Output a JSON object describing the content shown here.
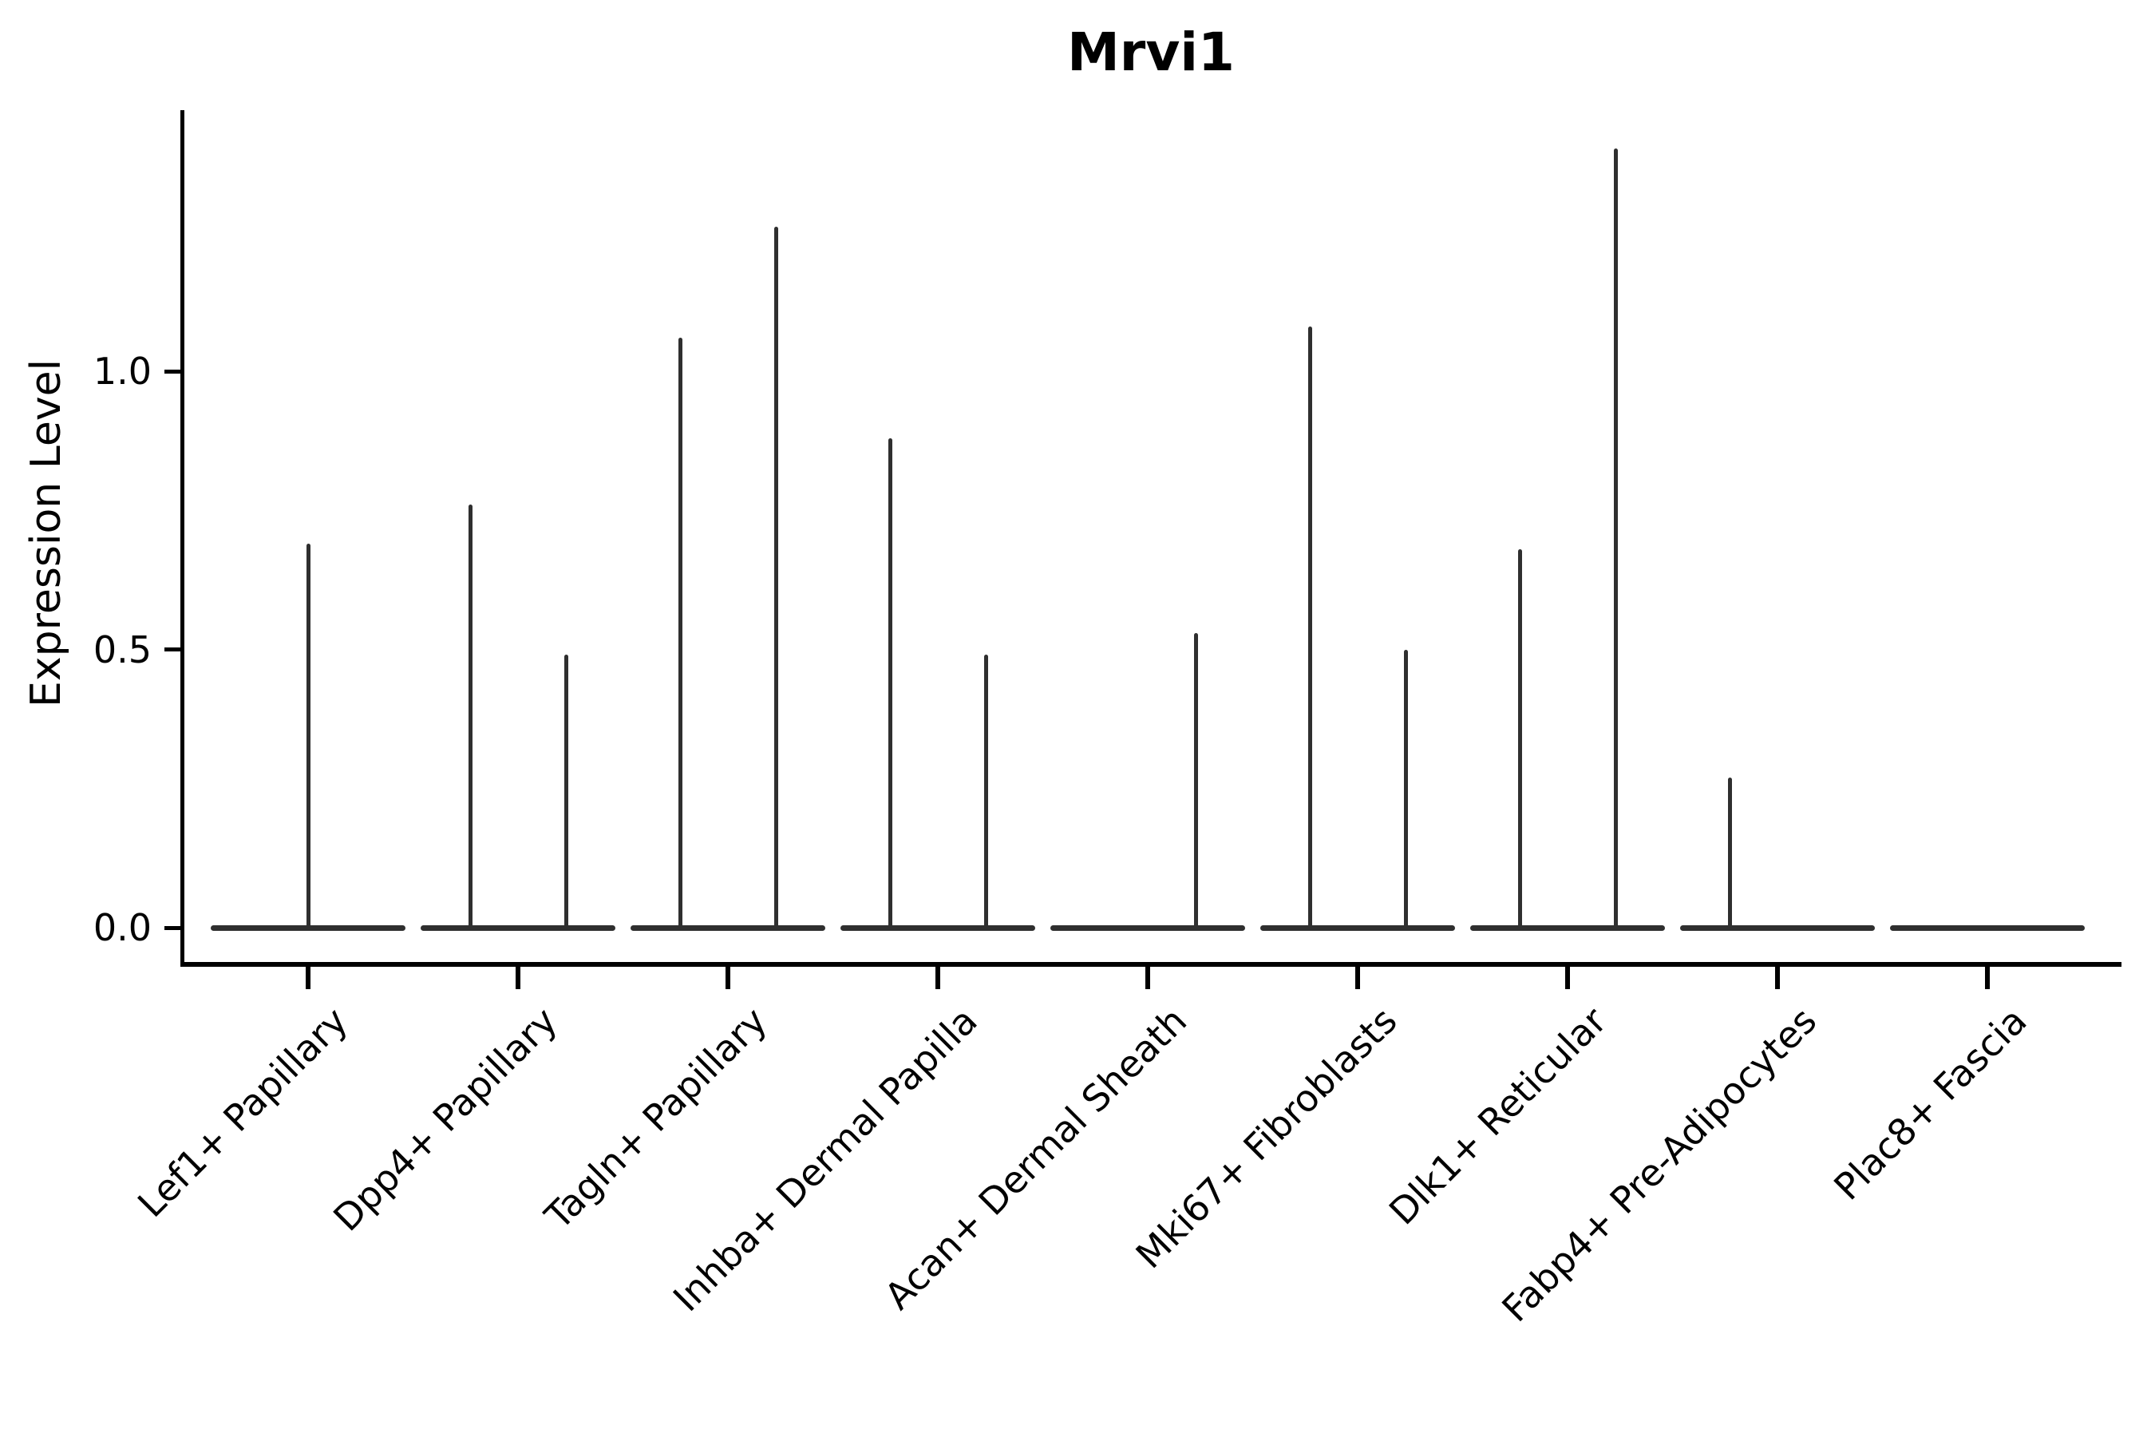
{
  "figure": {
    "title": "Mrvi1",
    "y_axis": {
      "label": "Expression Level"
    }
  },
  "chart_data": {
    "type": "violin",
    "title": "Mrvi1",
    "xlabel": "",
    "ylabel": "Expression Level",
    "yticks": [
      0.0,
      0.5,
      1.0
    ],
    "ylim": [
      -0.06,
      1.48
    ],
    "grid": false,
    "legend": "none",
    "orientation": "vertical",
    "baseline_value": 0.0,
    "note": "Expression violin plot; each cell-type category shows density collapsed at 0 (wide flat base) with thin spikes rising to the maximum expression of each sub-violin (left/center/right position within the category).",
    "categories": [
      "Lef1+ Papillary",
      "Dpp4+ Papillary",
      "Tagln+ Papillary",
      "Inhba+ Dermal Papilla",
      "Acan+ Dermal Sheath",
      "Mki67+ Fibroblasts",
      "Dlk1+ Reticular",
      "Fabp4+ Pre-Adipocytes",
      "Plac8+ Fascia"
    ],
    "violins": [
      {
        "category": "Lef1+ Papillary",
        "spikes": [
          {
            "position": "center",
            "max_expression": 0.69
          }
        ]
      },
      {
        "category": "Dpp4+ Papillary",
        "spikes": [
          {
            "position": "left",
            "max_expression": 0.76
          },
          {
            "position": "right",
            "max_expression": 0.49
          }
        ]
      },
      {
        "category": "Tagln+ Papillary",
        "spikes": [
          {
            "position": "left",
            "max_expression": 1.06
          },
          {
            "position": "right",
            "max_expression": 1.26
          }
        ]
      },
      {
        "category": "Inhba+ Dermal Papilla",
        "spikes": [
          {
            "position": "left",
            "max_expression": 0.88
          },
          {
            "position": "right",
            "max_expression": 0.49
          }
        ]
      },
      {
        "category": "Acan+ Dermal Sheath",
        "spikes": [
          {
            "position": "right",
            "max_expression": 0.53
          }
        ]
      },
      {
        "category": "Mki67+ Fibroblasts",
        "spikes": [
          {
            "position": "left",
            "max_expression": 1.08
          },
          {
            "position": "right",
            "max_expression": 0.5
          }
        ]
      },
      {
        "category": "Dlk1+ Reticular",
        "spikes": [
          {
            "position": "left",
            "max_expression": 0.68
          },
          {
            "position": "right",
            "max_expression": 1.4
          }
        ]
      },
      {
        "category": "Fabp4+ Pre-Adipocytes",
        "spikes": [
          {
            "position": "left",
            "max_expression": 0.27
          }
        ]
      },
      {
        "category": "Plac8+ Fascia",
        "spikes": []
      }
    ],
    "colors": {
      "violin_line": "#2f2f2f",
      "axis": "#000000",
      "text": "#000000",
      "background": "#ffffff"
    }
  }
}
